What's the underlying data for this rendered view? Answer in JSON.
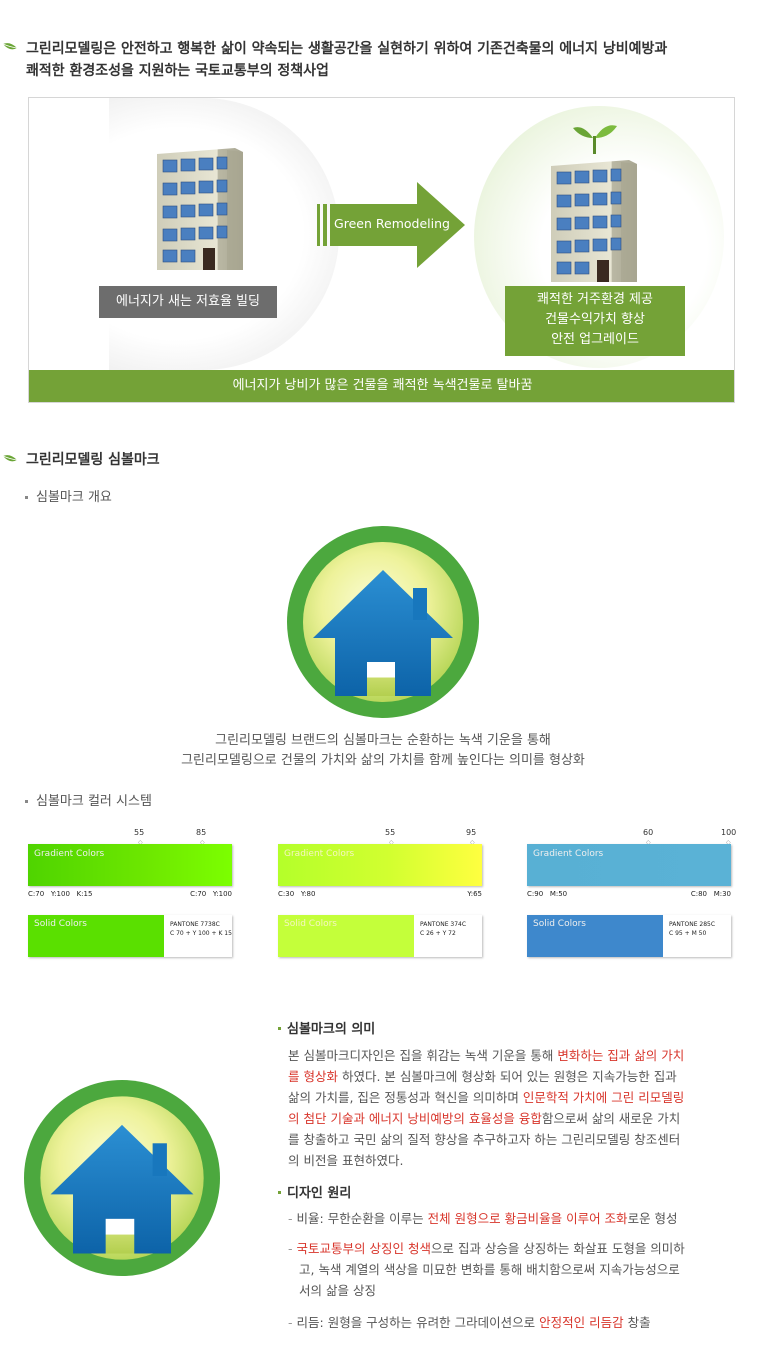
{
  "intro": {
    "line1": "그린리모델링은 안전하고 행복한 삶이 약속되는 생활공간을 실현하기 위하여 기존건축물의 에너지 낭비예방과",
    "line2": "쾌적한 환경조성을 지원하는 국토교통부의 정책사업"
  },
  "diagram": {
    "left_label": "에너지가 새는 저효율 빌딩",
    "arrow_label": "Green Remodeling",
    "right_label_1": "쾌적한 거주환경 제공",
    "right_label_2": "건물수익가치 향상",
    "right_label_3": "안전 업그레이드",
    "bottom_bar": "에너지가 낭비가 많은 건물을 쾌적한 녹색건물로 탈바꿈"
  },
  "symbol_section": {
    "title": "그린리모델링 심볼마크",
    "overview_title": "심볼마크 개요",
    "desc1": "그린리모델링 브랜드의 심볼마크는 순환하는 녹색 기운을 통해",
    "desc2": "그린리모델링으로 건물의 가치와 삶의 가치를 함께 높인다는 의미를 형상화",
    "color_title": "심볼마크 컬러 시스템"
  },
  "colors": {
    "brand_green": "#74a237",
    "house_blue": "#1a7fc4",
    "highlight_red": "#d8352b",
    "swatches": [
      {
        "grad_label": "Gradient Colors",
        "num_a": "55",
        "num_b": "85",
        "left_code": "C:70   Y:100   K:15",
        "right_code": "C:70   Y:100",
        "solid_label": "Solid Colors",
        "pantone_1": "PANTONE 7738C",
        "pantone_2": "C 70 + Y 100 + K 15",
        "grad_from": "#4fd400",
        "grad_to": "#7cff00",
        "solid": "#5ae000"
      },
      {
        "grad_label": "Gradient Colors",
        "num_a": "55",
        "num_b": "95",
        "left_code": "C:30   Y:80",
        "right_code": "Y:65",
        "solid_label": "Solid Colors",
        "pantone_1": "PANTONE 374C",
        "pantone_2": "C 26 + Y 72",
        "grad_from": "#b4ff2a",
        "grad_to": "#ffff40",
        "solid": "#c4ff3a"
      },
      {
        "grad_label": "Gradient Colors",
        "num_a": "60",
        "num_b": "100",
        "left_code": "C:90   M:50",
        "right_code": "C:80   M:30",
        "solid_label": "Solid Colors",
        "pantone_1": "PANTONE 285C",
        "pantone_2": "C 95 + M 50",
        "grad_from": "#58b0d4",
        "grad_to": "#5ab2d6",
        "solid": "#3e88cc"
      }
    ]
  },
  "meaning": {
    "title": "심볼마크의 의미",
    "p_a": "본 심볼마크디자인은 집을 휘감는 녹색 기운을 통해 ",
    "p_b": "변화하는 집과 삶의 가치",
    "p_c": "를 형상화",
    "p_d": " 하였다. 본 심볼마크에 형상화 되어 있는 원형은 지속가능한 집과",
    "p_e": "삶의 가치를, 집은 정통성과 혁신을 의미하며 ",
    "p_f": "인문학적 가치에 그린 리모델링",
    "p_g": "의 첨단 기술과 에너지 낭비예방의 효율성을 융합",
    "p_h": "함으로써 삶의 새로운 가치",
    "p_i": "를 창출하고 국민 삶의 질적 향상을 추구하고자 하는 그린리모델링 창조센터",
    "p_j": "의 비전을 표현하였다."
  },
  "design": {
    "title": "디자인 원리",
    "item1_a": "비율: 무한순환을 이루는 ",
    "item1_b": "전체 원형으로 황금비율을 이루어 조화",
    "item1_c": "로운 형성",
    "item2_a": "국토교통부의 상징인 청색",
    "item2_b": "으로 집과 상승을 상징하는 화살표 도형을 의미하",
    "item2_c": "고, 녹색 계열의 색상을 미묘한 변화를 통해 배치함으로써 지속가능성으로",
    "item2_d": "서의 삶을 상징",
    "item3_a": "리듬: 원형을 구성하는 유려한 그라데이션으로 ",
    "item3_b": "안정적인 리듬감",
    "item3_c": " 창출"
  }
}
